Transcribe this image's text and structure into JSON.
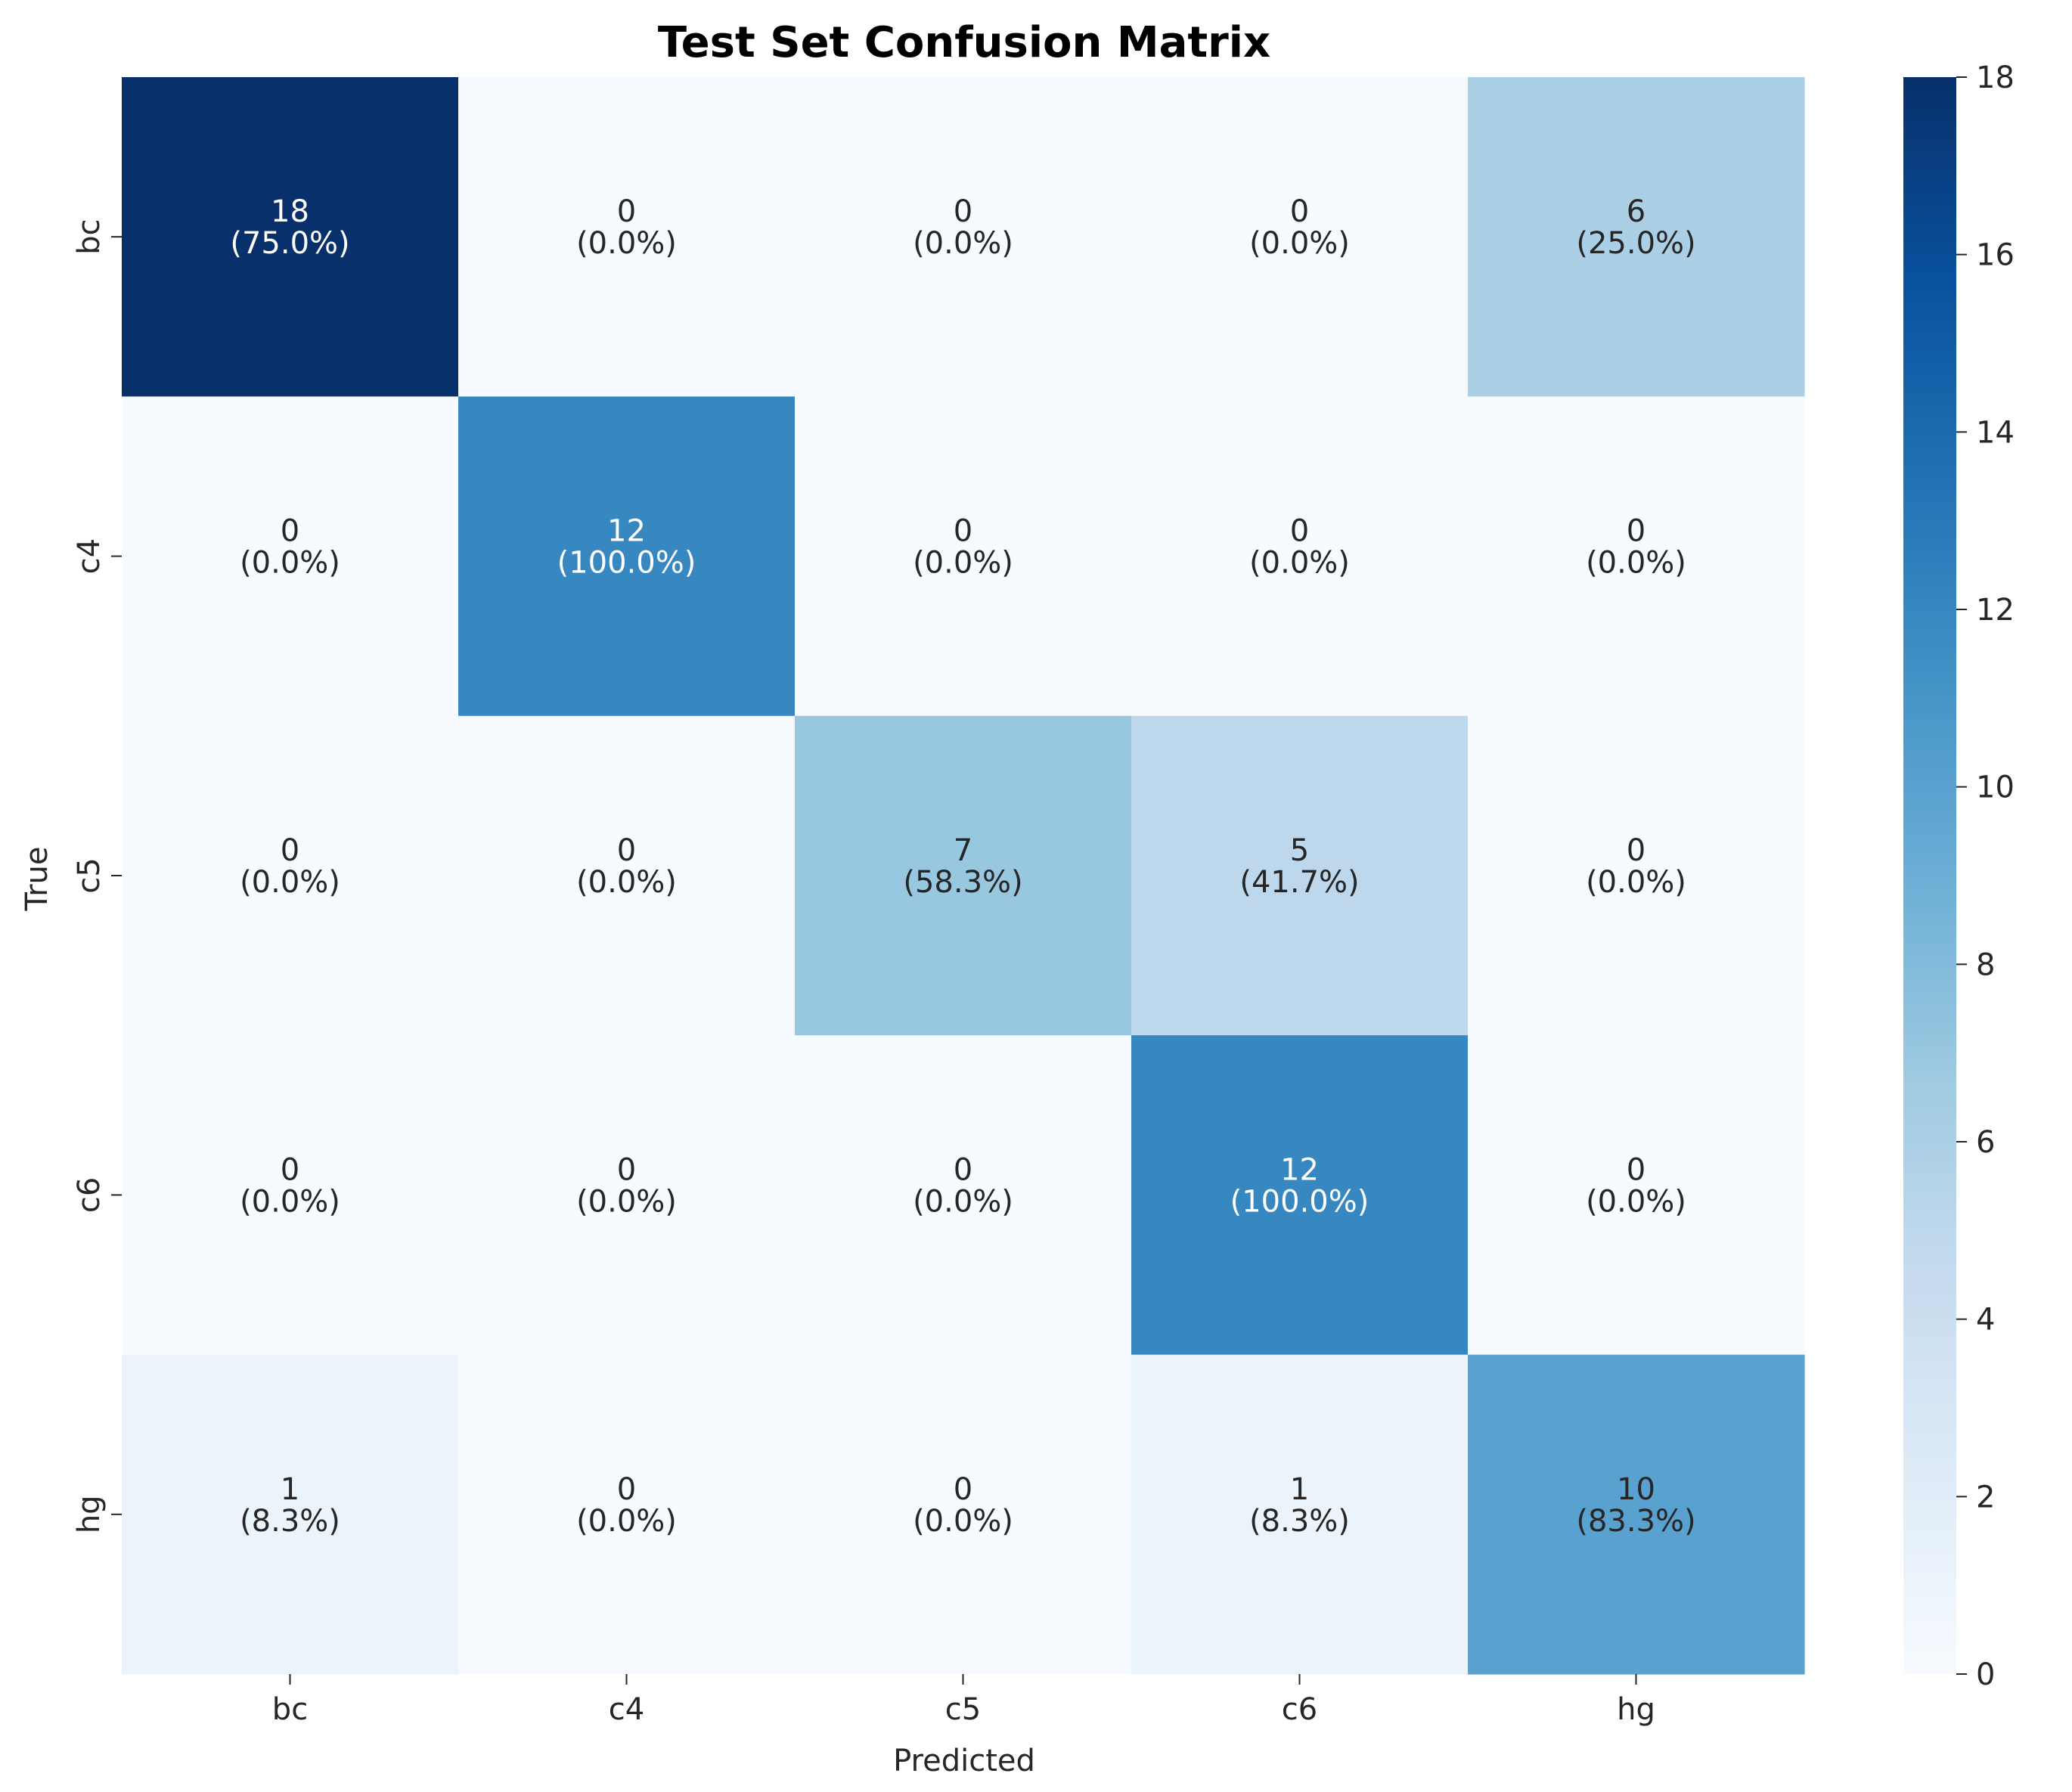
{
  "chart_data": {
    "type": "heatmap",
    "title": "Test Set Confusion Matrix",
    "xlabel": "Predicted",
    "ylabel": "True",
    "x_categories": [
      "bc",
      "c4",
      "c5",
      "c6",
      "hg"
    ],
    "y_categories": [
      "bc",
      "c4",
      "c5",
      "c6",
      "hg"
    ],
    "values": [
      [
        18,
        0,
        0,
        0,
        6
      ],
      [
        0,
        12,
        0,
        0,
        0
      ],
      [
        0,
        0,
        7,
        5,
        0
      ],
      [
        0,
        0,
        0,
        12,
        0
      ],
      [
        1,
        0,
        0,
        1,
        10
      ]
    ],
    "percent_labels": [
      [
        "(75.0%)",
        "(0.0%)",
        "(0.0%)",
        "(0.0%)",
        "(25.0%)"
      ],
      [
        "(0.0%)",
        "(100.0%)",
        "(0.0%)",
        "(0.0%)",
        "(0.0%)"
      ],
      [
        "(0.0%)",
        "(0.0%)",
        "(58.3%)",
        "(41.7%)",
        "(0.0%)"
      ],
      [
        "(0.0%)",
        "(0.0%)",
        "(0.0%)",
        "(100.0%)",
        "(0.0%)"
      ],
      [
        "(8.3%)",
        "(0.0%)",
        "(0.0%)",
        "(8.3%)",
        "(83.3%)"
      ]
    ],
    "colorbar": {
      "colormap": "Blues",
      "range": [
        0,
        18
      ],
      "ticks": [
        0,
        2,
        4,
        6,
        8,
        10,
        12,
        14,
        16,
        18
      ]
    }
  }
}
